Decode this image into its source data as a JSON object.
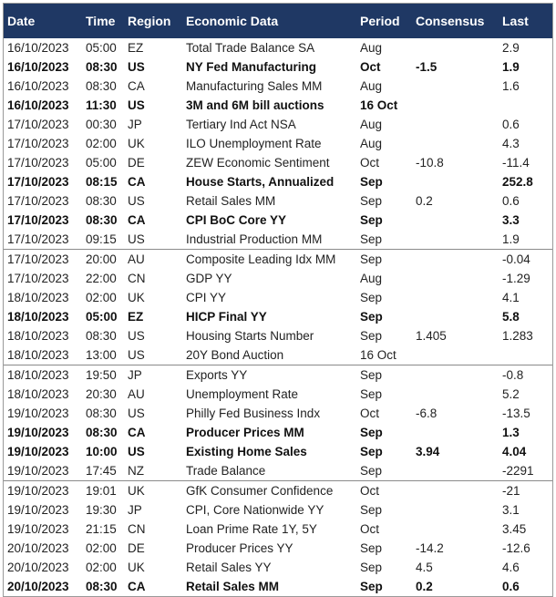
{
  "table": {
    "header": [
      "Date",
      "Time",
      "Region",
      "Economic Data",
      "Period",
      "Consensus",
      "Last"
    ],
    "groups": [
      {
        "rows": [
          {
            "cells": [
              "16/10/2023",
              "05:00",
              "EZ",
              "Total Trade Balance SA",
              "Aug",
              null,
              "2.9"
            ],
            "bold": false
          },
          {
            "cells": [
              "16/10/2023",
              "08:30",
              "US",
              "NY Fed Manufacturing",
              "Oct",
              "-1.5",
              "1.9"
            ],
            "bold": true
          },
          {
            "cells": [
              "16/10/2023",
              "08:30",
              "CA",
              "Manufacturing Sales MM",
              "Aug",
              null,
              "1.6"
            ],
            "bold": false
          },
          {
            "cells": [
              "16/10/2023",
              "11:30",
              "US",
              "3M and 6M bill auctions",
              "16 Oct",
              null,
              null
            ],
            "bold": true
          },
          {
            "cells": [
              "17/10/2023",
              "00:30",
              "JP",
              "Tertiary Ind Act NSA",
              "Aug",
              null,
              "0.6"
            ],
            "bold": false
          },
          {
            "cells": [
              "17/10/2023",
              "02:00",
              "UK",
              "ILO Unemployment Rate",
              "Aug",
              null,
              "4.3"
            ],
            "bold": false
          },
          {
            "cells": [
              "17/10/2023",
              "05:00",
              "DE",
              "ZEW Economic Sentiment",
              "Oct",
              "-10.8",
              "-11.4"
            ],
            "bold": false
          },
          {
            "cells": [
              "17/10/2023",
              "08:15",
              "CA",
              "House Starts, Annualized",
              "Sep",
              null,
              "252.8"
            ],
            "bold": true
          },
          {
            "cells": [
              "17/10/2023",
              "08:30",
              "US",
              "Retail Sales MM",
              "Sep",
              "0.2",
              "0.6"
            ],
            "bold": false
          },
          {
            "cells": [
              "17/10/2023",
              "08:30",
              "CA",
              "CPI BoC Core YY",
              "Sep",
              null,
              "3.3"
            ],
            "bold": true
          },
          {
            "cells": [
              "17/10/2023",
              "09:15",
              "US",
              "Industrial Production MM",
              "Sep",
              null,
              "1.9"
            ],
            "bold": false
          }
        ]
      },
      {
        "rows": [
          {
            "cells": [
              "17/10/2023",
              "20:00",
              "AU",
              "Composite Leading Idx MM",
              "Sep",
              null,
              "-0.04"
            ],
            "bold": false
          },
          {
            "cells": [
              "17/10/2023",
              "22:00",
              "CN",
              "GDP YY",
              "Aug",
              null,
              "-1.29"
            ],
            "bold": false
          },
          {
            "cells": [
              "18/10/2023",
              "02:00",
              "UK",
              "CPI YY",
              "Sep",
              null,
              "4.1"
            ],
            "bold": false
          },
          {
            "cells": [
              "18/10/2023",
              "05:00",
              "EZ",
              "HICP Final YY",
              "Sep",
              null,
              "5.8"
            ],
            "bold": true
          },
          {
            "cells": [
              "18/10/2023",
              "08:30",
              "US",
              "Housing Starts Number",
              "Sep",
              "1.405",
              "1.283"
            ],
            "bold": false
          },
          {
            "cells": [
              "18/10/2023",
              "13:00",
              "US",
              "20Y Bond Auction",
              "16 Oct",
              null,
              null
            ],
            "bold": false
          }
        ]
      },
      {
        "rows": [
          {
            "cells": [
              "18/10/2023",
              "19:50",
              "JP",
              "Exports YY",
              "Sep",
              null,
              "-0.8"
            ],
            "bold": false
          },
          {
            "cells": [
              "18/10/2023",
              "20:30",
              "AU",
              "Unemployment Rate",
              "Sep",
              null,
              "5.2"
            ],
            "bold": false
          },
          {
            "cells": [
              "19/10/2023",
              "08:30",
              "US",
              "Philly Fed Business Indx",
              "Oct",
              "-6.8",
              "-13.5"
            ],
            "bold": false
          },
          {
            "cells": [
              "19/10/2023",
              "08:30",
              "CA",
              "Producer Prices MM",
              "Sep",
              null,
              "1.3"
            ],
            "bold": true
          },
          {
            "cells": [
              "19/10/2023",
              "10:00",
              "US",
              "Existing Home Sales",
              "Sep",
              "3.94",
              "4.04"
            ],
            "bold": true
          },
          {
            "cells": [
              "19/10/2023",
              "17:45",
              "NZ",
              "Trade Balance",
              "Sep",
              null,
              "-2291"
            ],
            "bold": false
          }
        ]
      },
      {
        "rows": [
          {
            "cells": [
              "19/10/2023",
              "19:01",
              "UK",
              "GfK Consumer Confidence",
              "Oct",
              null,
              "-21"
            ],
            "bold": false
          },
          {
            "cells": [
              "19/10/2023",
              "19:30",
              "JP",
              "CPI, Core Nationwide YY",
              "Sep",
              null,
              "3.1"
            ],
            "bold": false
          },
          {
            "cells": [
              "19/10/2023",
              "21:15",
              "CN",
              "Loan Prime Rate 1Y, 5Y",
              "Oct",
              null,
              "3.45"
            ],
            "bold": false
          },
          {
            "cells": [
              "20/10/2023",
              "02:00",
              "DE",
              "Producer Prices YY",
              "Sep",
              "-14.2",
              "-12.6"
            ],
            "bold": false
          },
          {
            "cells": [
              "20/10/2023",
              "02:00",
              "UK",
              "Retail Sales YY",
              "Sep",
              "4.5",
              "4.6"
            ],
            "bold": false
          },
          {
            "cells": [
              "20/10/2023",
              "08:30",
              "CA",
              "Retail Sales MM",
              "Sep",
              "0.2",
              "0.6"
            ],
            "bold": true
          }
        ]
      }
    ]
  }
}
